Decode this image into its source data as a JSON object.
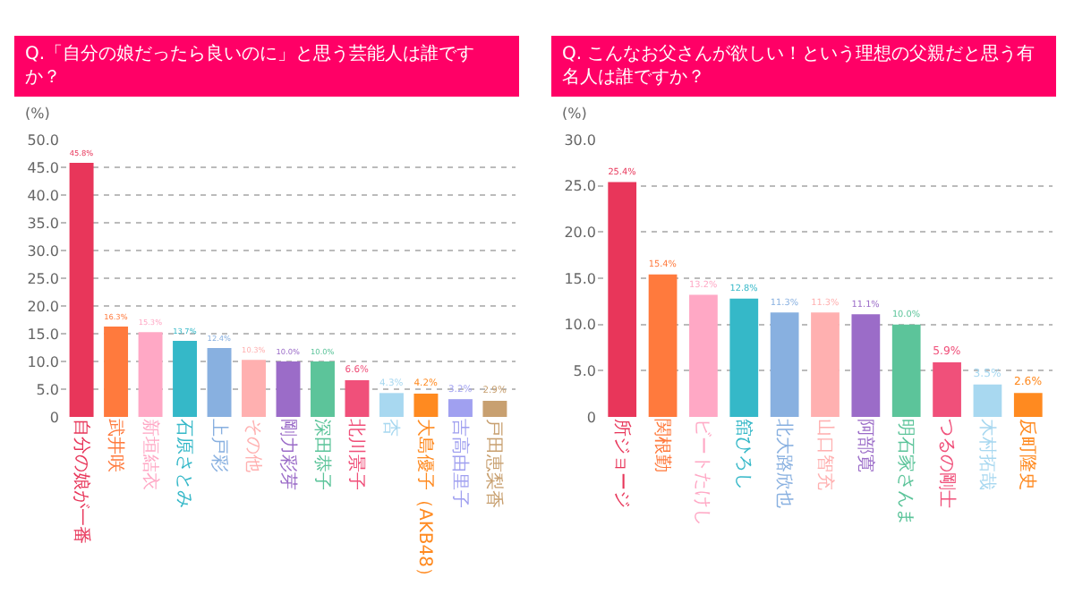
{
  "chart_data": [
    {
      "type": "bar",
      "title": "Q.「自分の娘だったら良いのに」と思う芸能人は誰ですか？",
      "ylabel": "(%)",
      "categories": [
        "自分の娘が一番",
        "武井咲",
        "新垣結衣",
        "石原さとみ",
        "上戸彩",
        "その他",
        "剛力彩芽",
        "深田恭子",
        "北川景子",
        "杏",
        "大島優子（AKB48）",
        "吉高由里子",
        "戸田恵梨香"
      ],
      "values": [
        45.8,
        16.3,
        15.3,
        13.7,
        12.4,
        10.3,
        10.0,
        10.0,
        6.6,
        4.3,
        4.2,
        3.2,
        2.9
      ],
      "colors": [
        "#e8365a",
        "#ff7a3d",
        "#ffa8c5",
        "#35b8c8",
        "#88b0e0",
        "#ffb0b0",
        "#9b6cc8",
        "#5cc49a",
        "#f0507a",
        "#a8d8f0",
        "#ff8a20",
        "#a0a0f0",
        "#c8a070"
      ],
      "value_labels": [
        "45.8%",
        "16.3%",
        "15.3%",
        "13.7%",
        "12.4%",
        "10.3%",
        "10.0%",
        "10.0%",
        "6.6%",
        "4.3%",
        "4.2%",
        "3.2%",
        "2.9%"
      ],
      "ylim": [
        0,
        50
      ],
      "yticks": [
        0,
        {
          "value": 5,
          "label": "5.0"
        },
        {
          "value": 10,
          "label": "10.0"
        },
        {
          "value": 15,
          "label": "15.0"
        },
        {
          "value": 20,
          "label": "20.0"
        },
        {
          "value": 25,
          "label": "25.0"
        },
        {
          "value": 30,
          "label": "30.0"
        },
        {
          "value": 35,
          "label": "35.0"
        },
        {
          "value": 40,
          "label": "40.0"
        },
        {
          "value": 45,
          "label": "45.0"
        },
        {
          "value": 50,
          "label": "50.0"
        }
      ],
      "grid": "y"
    },
    {
      "type": "bar",
      "title": "Q. こんなお父さんが欲しい！という理想の父親だと思う有名人は誰ですか？",
      "ylabel": "(%)",
      "categories": [
        "所ジョージ",
        "関根勤",
        "ビートたけし",
        "舘ひろし",
        "北大路欣也",
        "山口智充",
        "阿部寛",
        "明石家さんま",
        "つるの剛士",
        "木村拓哉",
        "反町隆史"
      ],
      "values": [
        25.4,
        15.4,
        13.2,
        12.8,
        11.3,
        11.3,
        11.1,
        10.0,
        5.9,
        3.5,
        2.6
      ],
      "colors": [
        "#e8365a",
        "#ff7a3d",
        "#ffa8c5",
        "#35b8c8",
        "#88b0e0",
        "#ffb0b0",
        "#9b6cc8",
        "#5cc49a",
        "#f0507a",
        "#a8d8f0",
        "#ff8a20"
      ],
      "value_labels": [
        "25.4%",
        "15.4%",
        "13.2%",
        "12.8%",
        "11.3%",
        "11.3%",
        "11.1%",
        "10.0%",
        "5.9%",
        "3.5%",
        "2.6%"
      ],
      "ylim": [
        0,
        30
      ],
      "yticks": [
        0,
        {
          "value": 5,
          "label": "5.0"
        },
        {
          "value": 10,
          "label": "10.0"
        },
        {
          "value": 15,
          "label": "15.0"
        },
        {
          "value": 20,
          "label": "20.0"
        },
        {
          "value": 25,
          "label": "25.0"
        },
        {
          "value": 30,
          "label": "30.0"
        }
      ],
      "grid": "y"
    }
  ]
}
